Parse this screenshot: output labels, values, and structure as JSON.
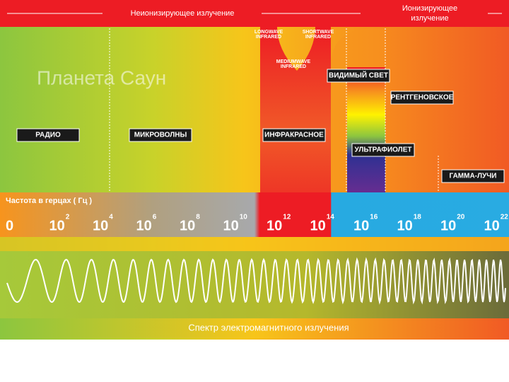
{
  "header": {
    "nonionizing": "Неионизирующее излучение",
    "ionizing": "Ионизирующее излучение"
  },
  "watermark": "Планета Саун",
  "infrared_sublabels": {
    "longwave": "LONGWAVE INFRARED",
    "shortwave": "SHORTWAVE INFRARED",
    "mediumwave": "MEDIUMWAVE INFRARED"
  },
  "bands": {
    "radio": "РАДИО",
    "microwave": "МИКРОВОЛНЫ",
    "infrared": "ИНФРАКРАСНОЕ",
    "visible": "ВИДИМЫЙ СВЕТ",
    "ultraviolet": "УЛЬТРАФИОЛЕТ",
    "xray": "РЕНТГЕНОВСКОЕ",
    "gamma": "ГАММА-ЛУЧИ"
  },
  "frequency": {
    "title": "Частота в герцах ( Гц )",
    "ticks": [
      {
        "base": "0"
      },
      {
        "base": "10",
        "exp": "2"
      },
      {
        "base": "10",
        "exp": "4"
      },
      {
        "base": "10",
        "exp": "6"
      },
      {
        "base": "10",
        "exp": "8"
      },
      {
        "base": "10",
        "exp": "10"
      },
      {
        "base": "10",
        "exp": "12"
      },
      {
        "base": "10",
        "exp": "14"
      },
      {
        "base": "10",
        "exp": "16"
      },
      {
        "base": "10",
        "exp": "18"
      },
      {
        "base": "10",
        "exp": "20"
      },
      {
        "base": "10",
        "exp": "22"
      }
    ]
  },
  "footer": "Спектр электромагнитного излучения"
}
